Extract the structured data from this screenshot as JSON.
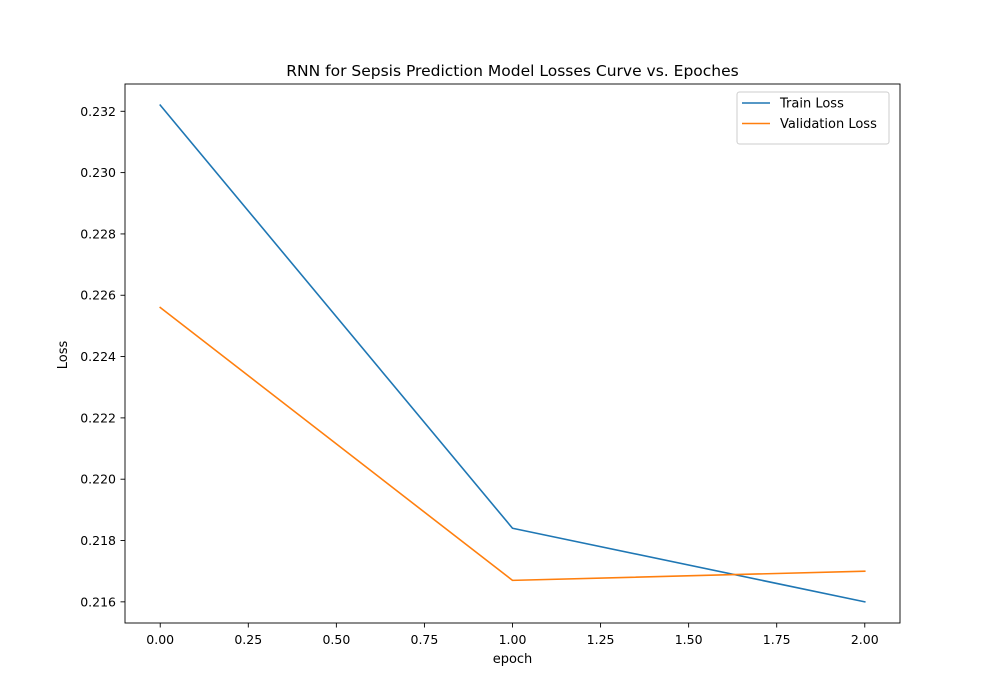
{
  "chart_data": {
    "type": "line",
    "title": "RNN for Sepsis Prediction Model Losses Curve vs. Epoches",
    "xlabel": "epoch",
    "ylabel": "Loss",
    "x": [
      0,
      1,
      2
    ],
    "series": [
      {
        "name": "Train Loss",
        "color": "#1f77b4",
        "values": [
          0.2322,
          0.2184,
          0.216
        ]
      },
      {
        "name": "Validation Loss",
        "color": "#ff7f0e",
        "values": [
          0.2256,
          0.2167,
          0.217
        ]
      }
    ],
    "xlim": [
      -0.1,
      2.1
    ],
    "ylim": [
      0.21531,
      0.23289
    ],
    "xticks": [
      {
        "value": 0.0,
        "label": "0.00"
      },
      {
        "value": 0.25,
        "label": "0.25"
      },
      {
        "value": 0.5,
        "label": "0.50"
      },
      {
        "value": 0.75,
        "label": "0.75"
      },
      {
        "value": 1.0,
        "label": "1.00"
      },
      {
        "value": 1.25,
        "label": "1.25"
      },
      {
        "value": 1.5,
        "label": "1.50"
      },
      {
        "value": 1.75,
        "label": "1.75"
      },
      {
        "value": 2.0,
        "label": "2.00"
      }
    ],
    "yticks": [
      {
        "value": 0.216,
        "label": "0.216"
      },
      {
        "value": 0.218,
        "label": "0.218"
      },
      {
        "value": 0.22,
        "label": "0.220"
      },
      {
        "value": 0.222,
        "label": "0.222"
      },
      {
        "value": 0.224,
        "label": "0.224"
      },
      {
        "value": 0.226,
        "label": "0.226"
      },
      {
        "value": 0.228,
        "label": "0.228"
      },
      {
        "value": 0.23,
        "label": "0.230"
      },
      {
        "value": 0.232,
        "label": "0.232"
      }
    ],
    "grid": false,
    "legend_position": "top-right"
  }
}
